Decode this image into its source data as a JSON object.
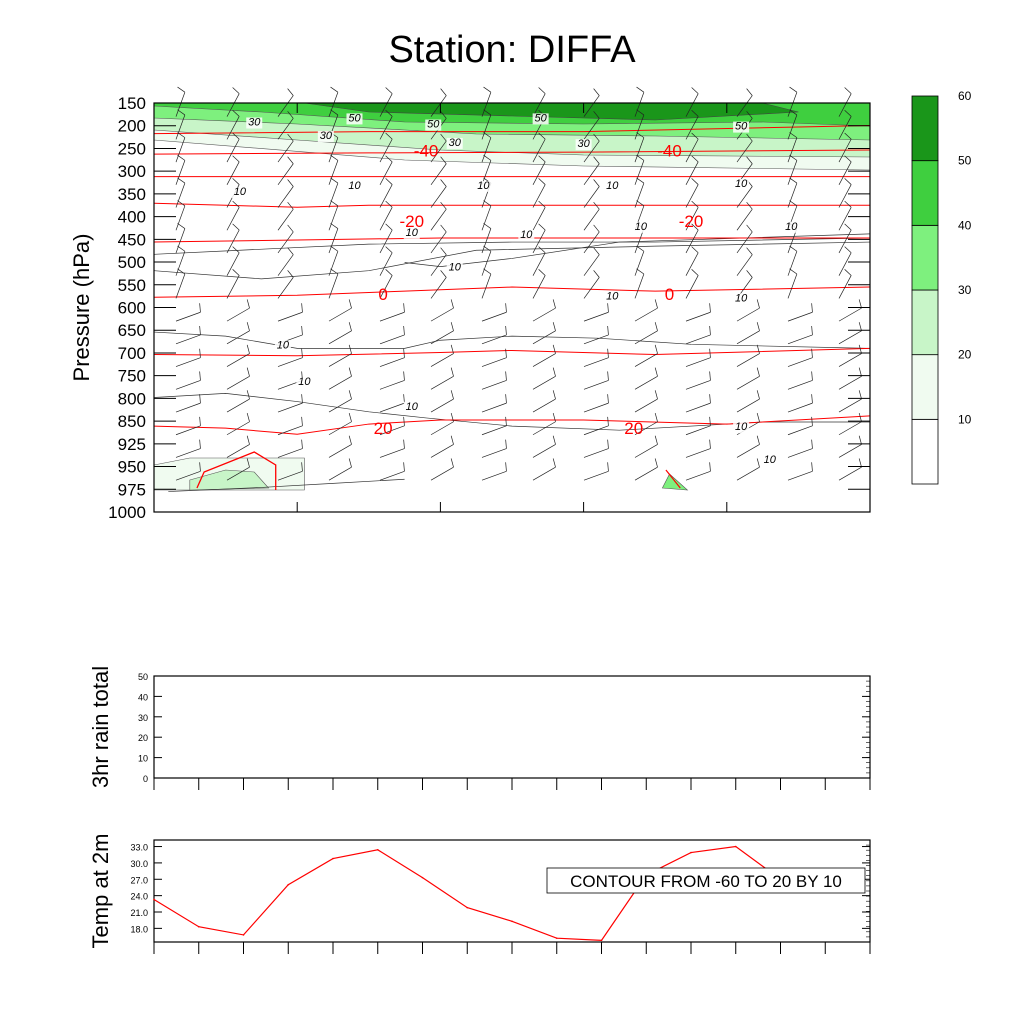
{
  "colors": {
    "temp_line": "#ff0000",
    "axis": "#000000",
    "shade": [
      "#ffffff",
      "#f0fbf0",
      "#c8f5c8",
      "#7ef07e",
      "#3fcf3f",
      "#1a961a"
    ]
  },
  "chart_data": [
    {
      "type": "heatmap",
      "title": "Station: DIFFA",
      "ylabel": "Pressure (hPa)",
      "xlabel": "",
      "y_ticks": [
        "150",
        "200",
        "250",
        "300",
        "350",
        "400",
        "450",
        "500",
        "550",
        "600",
        "650",
        "700",
        "750",
        "800",
        "850",
        "925",
        "950",
        "975",
        "1000"
      ],
      "x_ticks_count": 5,
      "colorbar": {
        "levels": [
          "10",
          "20",
          "30",
          "40",
          "50",
          "60"
        ]
      },
      "temperature_contour_labels": [
        {
          "label": "-40",
          "ticks_x": [
            0.38,
            0.72
          ],
          "p_index": 2.1
        },
        {
          "label": "-20",
          "ticks_x": [
            0.36,
            0.75
          ],
          "p_index": 5.2
        },
        {
          "label": "0",
          "ticks_x": [
            0.32,
            0.72
          ],
          "p_index": 8.4
        },
        {
          "label": "20",
          "ticks_x": [
            0.32,
            0.67
          ],
          "p_index": 14.3
        }
      ],
      "speed_contour_labels": [
        "30",
        "50",
        "50",
        "50",
        "50",
        "30",
        "30",
        "30",
        "10",
        "10",
        "10",
        "10",
        "10",
        "10",
        "10",
        "10",
        "10",
        "10",
        "10",
        "10",
        "10",
        "10",
        "10",
        "10",
        "10"
      ],
      "grid": false
    },
    {
      "type": "line",
      "ylabel": "3hr rain total",
      "xlabel": "",
      "ylim": [
        0,
        50
      ],
      "y_ticks": [
        "0",
        "10",
        "20",
        "30",
        "40",
        "50"
      ],
      "series": [
        {
          "values": []
        }
      ]
    },
    {
      "type": "line",
      "ylabel": "Temp at 2m",
      "xlabel": "",
      "ylim": [
        15.5,
        34.2
      ],
      "y_ticks": [
        "18.0",
        "21.0",
        "24.0",
        "27.0",
        "30.0",
        "33.0"
      ],
      "series": [
        {
          "values": [
            23.3,
            18.3,
            16.8,
            26.0,
            30.8,
            32.4,
            27.3,
            21.8,
            19.3,
            16.2,
            15.8,
            27.8,
            31.9,
            33.0,
            27.0
          ]
        }
      ],
      "annotation": "CONTOUR FROM -60 TO 20 BY 10"
    }
  ]
}
